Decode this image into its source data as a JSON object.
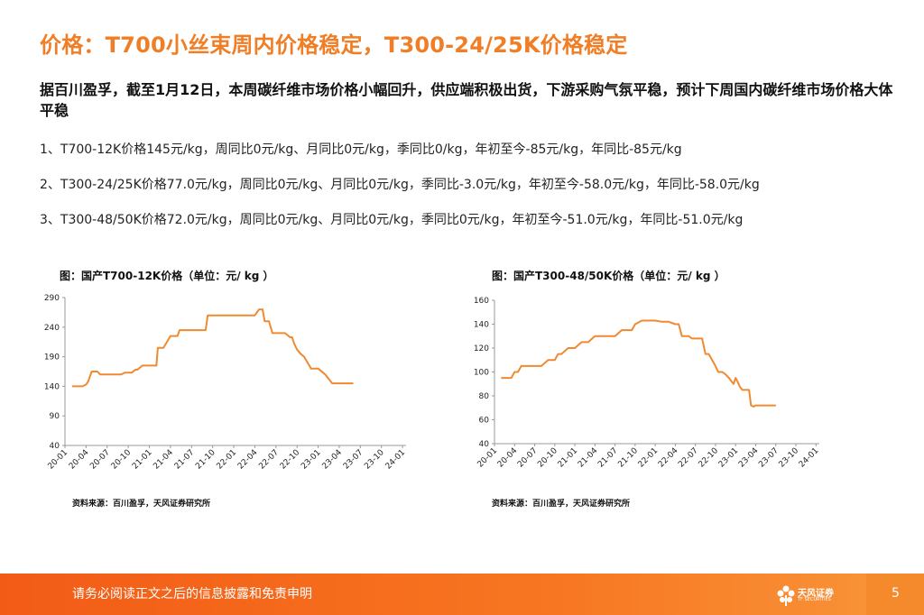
{
  "slide": {
    "title": "价格：T700小丝束周内价格稳定，T300-24/25K价格稳定",
    "subtitle": "据百川盈孚，截至1月12日，本周碳纤维市场价格小幅回升，供应端积极出货，下游采购气氛平稳，预计下周国内碳纤维市场价格大体平稳",
    "bullets": [
      "1、T700-12K价格145元/kg，周同比0元/kg、月同比0元/kg，季同比0/kg，年初至今-85元/kg，年同比-85元/kg",
      "2、T300-24/25K价格77.0元/kg，周同比0元/kg、月同比0元/kg，季同比-3.0元/kg，年初至今-58.0元/kg，年同比-58.0元/kg",
      "3、T300-48/50K价格72.0元/kg，周同比0元/kg、月同比0元/kg，季同比0元/kg，年初至今-51.0元/kg，年同比-51.0元/kg"
    ]
  },
  "charts": [
    {
      "title": "图：国产T700-12K价格（单位：元/ kg ）",
      "source": "资料来源：百川盈孚，天风证券研究所"
    },
    {
      "title": "图：国产T300-48/50K价格（单位：元/ kg ）",
      "source": "资料来源：百川盈孚，天风证券研究所"
    }
  ],
  "footer": {
    "disclaimer": "请务必阅读正文之后的信息披露和免责申明",
    "logo_name": "天风证券",
    "logo_sub": "TF SECURITIES",
    "page_number": "5"
  },
  "colors": {
    "accent": "#f07e26",
    "line": "#f08a32",
    "footer": "#f25b16"
  },
  "chart_data": [
    {
      "type": "line",
      "title": "图：国产T700-12K价格（单位：元/ kg ）",
      "xlabel": "",
      "ylabel": "",
      "ylim": [
        40,
        290
      ],
      "yticks": [
        40,
        90,
        140,
        190,
        240,
        290
      ],
      "xticks": [
        "20-01",
        "20-04",
        "20-07",
        "20-10",
        "21-01",
        "21-04",
        "21-07",
        "21-10",
        "22-01",
        "22-04",
        "22-07",
        "22-10",
        "23-01",
        "23-04",
        "23-07",
        "23-10",
        "24-01"
      ],
      "x_start": "2020-01",
      "x_range": [
        0,
        48.5
      ],
      "series": [
        {
          "name": "T700-12K",
          "x": [
            1,
            2,
            2.5,
            3,
            3.3,
            3.8,
            4.6,
            5,
            7.3,
            8,
            8.5,
            9.5,
            10,
            10.3,
            11,
            13,
            13.2,
            14,
            15,
            16,
            16.3,
            17,
            17.3,
            18,
            20,
            20.3,
            21,
            23,
            24,
            25,
            26,
            26.5,
            27,
            27.6,
            28,
            28.1,
            28.4,
            29,
            29.5,
            30,
            30.2,
            31,
            31.3,
            32,
            32.3,
            32.6,
            33,
            33.5,
            34,
            35,
            35.5,
            36,
            37,
            38,
            39,
            41
          ],
          "values": [
            140,
            140,
            140,
            143,
            148,
            165,
            165,
            160,
            160,
            160,
            163,
            163,
            168,
            168,
            175,
            175,
            205,
            205,
            225,
            225,
            235,
            235,
            235,
            235,
            235,
            260,
            260,
            260,
            260,
            260,
            260,
            260,
            260,
            270,
            270,
            270,
            250,
            250,
            230,
            230,
            230,
            230,
            230,
            223,
            223,
            212,
            202,
            195,
            190,
            170,
            170,
            170,
            160,
            145,
            145,
            145
          ]
        }
      ]
    },
    {
      "type": "line",
      "title": "图：国产T300-48/50K价格（单位：元/ kg ）",
      "xlabel": "",
      "ylabel": "",
      "ylim": [
        40,
        160
      ],
      "yticks": [
        40,
        60,
        80,
        100,
        120,
        140,
        160
      ],
      "xticks": [
        "20-01",
        "20-04",
        "20-07",
        "20-10",
        "21-01",
        "21-04",
        "21-07",
        "21-10",
        "22-01",
        "22-04",
        "22-07",
        "22-10",
        "23-01",
        "23-04",
        "23-07",
        "23-10",
        "24-01"
      ],
      "x_start": "2020-01",
      "x_range": [
        0,
        48.5
      ],
      "series": [
        {
          "name": "T300-48/50K",
          "x": [
            1,
            2.5,
            3,
            3.5,
            4,
            5,
            6,
            7,
            8,
            9,
            9.5,
            10,
            11,
            12,
            13,
            14,
            15,
            15.5,
            16,
            18,
            19,
            20,
            20.5,
            21,
            22,
            24,
            25,
            26,
            27,
            27.5,
            28,
            29,
            29.5,
            31,
            31.5,
            32,
            33,
            33.4,
            34,
            34.5,
            35,
            35.4,
            35.7,
            36,
            36.3,
            36.6,
            37,
            38,
            38.3,
            38.7,
            39,
            40,
            41,
            42
          ],
          "values": [
            95,
            95,
            100,
            100,
            105,
            105,
            105,
            105,
            110,
            110,
            115,
            115,
            120,
            120,
            125,
            125,
            130,
            130,
            130,
            130,
            135,
            135,
            135,
            140,
            143,
            143,
            142,
            142,
            140,
            140,
            130,
            130,
            128,
            128,
            115,
            115,
            105,
            100,
            100,
            98,
            95,
            92,
            90,
            95,
            92,
            88,
            85,
            85,
            72,
            71,
            72,
            72,
            72,
            72
          ]
        }
      ]
    }
  ]
}
